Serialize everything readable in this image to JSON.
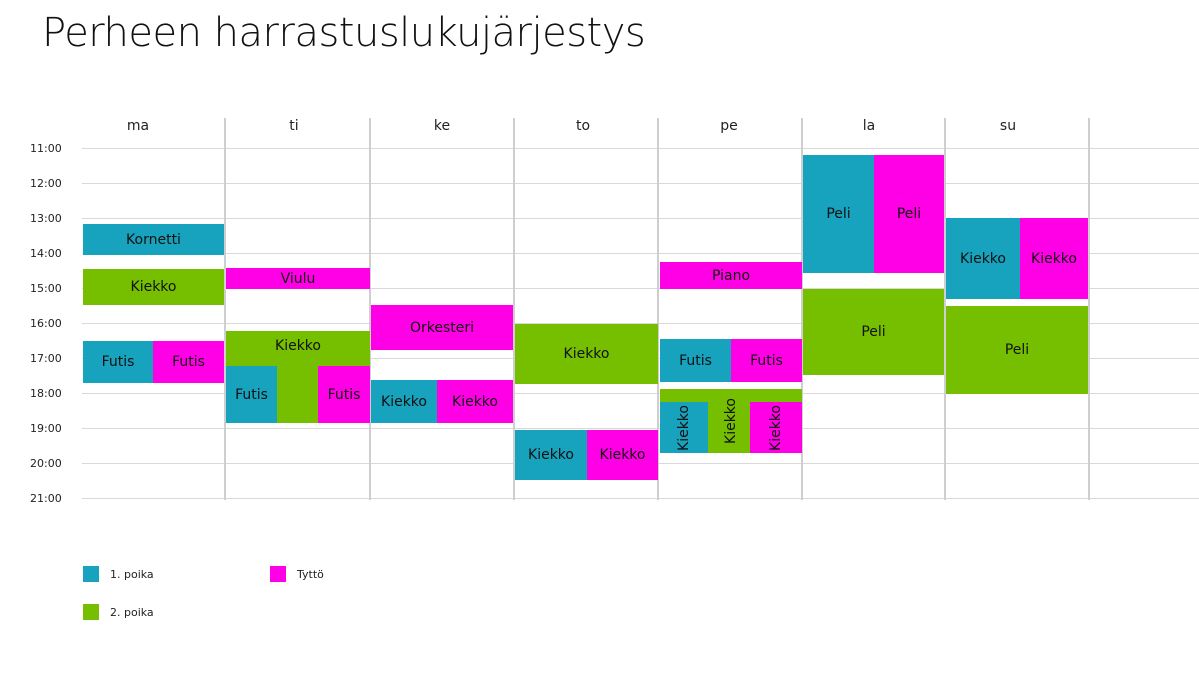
{
  "title": "Perheen harrastuslukujärjestys",
  "days": [
    "ma",
    "ti",
    "ke",
    "to",
    "pe",
    "la",
    "su"
  ],
  "times": [
    "11:00",
    "12:00",
    "13:00",
    "14:00",
    "15:00",
    "16:00",
    "17:00",
    "18:00",
    "19:00",
    "20:00",
    "21:00"
  ],
  "colors": {
    "poika1": "#17a2bd",
    "poika2": "#76bf00",
    "tytto": "#ff00e6"
  },
  "legend": [
    {
      "label": "1. poika",
      "color": "#17a2bd"
    },
    {
      "label": "Tyttö",
      "color": "#ff00e6"
    },
    {
      "label": "2. poika",
      "color": "#76bf00"
    }
  ],
  "activities": {
    "ma": [
      {
        "label": "Kornetti",
        "who": "1. poika",
        "start": "13:10",
        "end": "14:00"
      },
      {
        "label": "Kiekko",
        "who": "2. poika",
        "start": "14:25",
        "end": "15:25"
      },
      {
        "label": "Futis",
        "who": "1. poika",
        "start": "16:30",
        "end": "17:40"
      },
      {
        "label": "Futis",
        "who": "Tyttö",
        "start": "16:30",
        "end": "17:40"
      }
    ],
    "ti": [
      {
        "label": "Viulu",
        "who": "Tyttö",
        "start": "14:25",
        "end": "15:00"
      },
      {
        "label": "Kiekko",
        "who": "2. poika",
        "start": "16:15",
        "end": "18:45"
      },
      {
        "label": "Futis",
        "who": "1. poika",
        "start": "17:15",
        "end": "18:45"
      },
      {
        "label": "Futis",
        "who": "Tyttö",
        "start": "17:15",
        "end": "18:45"
      }
    ],
    "ke": [
      {
        "label": "Orkesteri",
        "who": "Tyttö",
        "start": "15:30",
        "end": "16:45"
      },
      {
        "label": "Kiekko",
        "who": "1. poika",
        "start": "17:35",
        "end": "18:45"
      },
      {
        "label": "Kiekko",
        "who": "Tyttö",
        "start": "17:35",
        "end": "18:45"
      }
    ],
    "to": [
      {
        "label": "Kiekko",
        "who": "2. poika",
        "start": "16:00",
        "end": "17:45"
      },
      {
        "label": "Kiekko",
        "who": "1. poika",
        "start": "19:00",
        "end": "20:25"
      },
      {
        "label": "Kiekko",
        "who": "Tyttö",
        "start": "19:00",
        "end": "20:25"
      }
    ],
    "pe": [
      {
        "label": "Piano",
        "who": "Tyttö",
        "start": "14:15",
        "end": "15:00"
      },
      {
        "label": "Futis",
        "who": "1. poika",
        "start": "16:30",
        "end": "17:45"
      },
      {
        "label": "Futis",
        "who": "Tyttö",
        "start": "16:30",
        "end": "17:45"
      },
      {
        "label": "Kiekko",
        "who": "2. poika",
        "start": "17:50",
        "end": "19:40"
      },
      {
        "label": "Kiekko",
        "who": "1. poika",
        "start": "18:15",
        "end": "19:40"
      },
      {
        "label": "Kiekko",
        "who": "Tyttö",
        "start": "18:15",
        "end": "19:40"
      }
    ],
    "la": [
      {
        "label": "Peli",
        "who": "1. poika",
        "start": "11:10",
        "end": "14:35"
      },
      {
        "label": "Peli",
        "who": "Tyttö",
        "start": "11:10",
        "end": "14:35"
      },
      {
        "label": "Peli",
        "who": "2. poika",
        "start": "15:00",
        "end": "17:25"
      }
    ],
    "su": [
      {
        "label": "Kiekko",
        "who": "1. poika",
        "start": "13:00",
        "end": "15:20"
      },
      {
        "label": "Kiekko",
        "who": "Tyttö",
        "start": "13:00",
        "end": "15:20"
      },
      {
        "label": "Peli",
        "who": "2. poika",
        "start": "15:30",
        "end": "18:00"
      }
    ]
  }
}
